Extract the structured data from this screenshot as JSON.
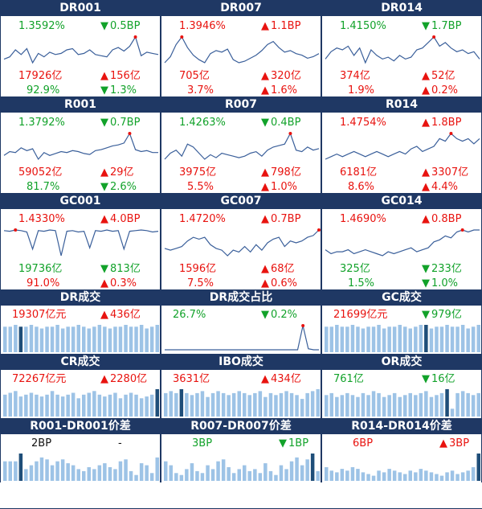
{
  "colors": {
    "header": "#1f3864",
    "up": "#e8130f",
    "down": "#12a22a",
    "line": "#3a5f9a",
    "bar": "#9dc3e6",
    "bar_highlight": "#1f4e79"
  },
  "panels": [
    {
      "title": "DR001",
      "rate": "1.3592%",
      "rate_color": "green",
      "bp_dir": "down",
      "bp": "0.5BP",
      "bp_color": "green",
      "vol": "17926亿",
      "vol_color": "red",
      "vdir": "up",
      "vchg": "156亿",
      "vchg_color": "red",
      "pct": "92.9%",
      "pct_color": "green",
      "pdir": "down",
      "pchg": "1.3%",
      "pchg_color": "green",
      "series": [
        1.22,
        1.24,
        1.3,
        1.26,
        1.31,
        1.19,
        1.27,
        1.24,
        1.28,
        1.26,
        1.27,
        1.3,
        1.31,
        1.26,
        1.27,
        1.3,
        1.26,
        1.25,
        1.24,
        1.3,
        1.32,
        1.29,
        1.33,
        1.41,
        1.25,
        1.28,
        1.27,
        1.26
      ]
    },
    {
      "title": "DR007",
      "rate": "1.3946%",
      "rate_color": "red",
      "bp_dir": "up",
      "bp": "1.1BP",
      "bp_color": "red",
      "vol": "705亿",
      "vol_color": "red",
      "vdir": "up",
      "vchg": "320亿",
      "vchg_color": "red",
      "pct": "3.7%",
      "pct_color": "red",
      "pdir": "up",
      "pchg": "1.6%",
      "pchg_color": "red",
      "series": [
        1.28,
        1.32,
        1.4,
        1.45,
        1.38,
        1.33,
        1.3,
        1.28,
        1.34,
        1.36,
        1.35,
        1.37,
        1.3,
        1.28,
        1.29,
        1.31,
        1.33,
        1.36,
        1.4,
        1.42,
        1.38,
        1.35,
        1.36,
        1.34,
        1.33,
        1.31,
        1.32,
        1.34
      ]
    },
    {
      "title": "DR014",
      "rate": "1.4150%",
      "rate_color": "green",
      "bp_dir": "down",
      "bp": "1.7BP",
      "bp_color": "green",
      "vol": "374亿",
      "vol_color": "red",
      "vdir": "up",
      "vchg": "52亿",
      "vchg_color": "red",
      "pct": "1.9%",
      "pct_color": "red",
      "pdir": "up",
      "pchg": "0.2%",
      "pchg_color": "red",
      "series": [
        1.38,
        1.42,
        1.44,
        1.43,
        1.45,
        1.4,
        1.44,
        1.36,
        1.43,
        1.4,
        1.38,
        1.39,
        1.37,
        1.4,
        1.38,
        1.39,
        1.43,
        1.44,
        1.47,
        1.5,
        1.45,
        1.47,
        1.44,
        1.42,
        1.43,
        1.41,
        1.42,
        1.38
      ]
    },
    {
      "title": "R001",
      "rate": "1.3792%",
      "rate_color": "green",
      "bp_dir": "down",
      "bp": "0.7BP",
      "bp_color": "green",
      "vol": "59052亿",
      "vol_color": "red",
      "vdir": "up",
      "vchg": "29亿",
      "vchg_color": "red",
      "pct": "81.7%",
      "pct_color": "green",
      "pdir": "down",
      "pchg": "2.6%",
      "pchg_color": "green",
      "series": [
        1.22,
        1.26,
        1.25,
        1.3,
        1.27,
        1.29,
        1.18,
        1.25,
        1.22,
        1.24,
        1.26,
        1.25,
        1.27,
        1.26,
        1.24,
        1.23,
        1.27,
        1.28,
        1.3,
        1.32,
        1.33,
        1.35,
        1.45,
        1.28,
        1.26,
        1.27,
        1.25,
        1.25
      ]
    },
    {
      "title": "R007",
      "rate": "1.4263%",
      "rate_color": "green",
      "bp_dir": "down",
      "bp": "0.4BP",
      "bp_color": "green",
      "vol": "3975亿",
      "vol_color": "red",
      "vdir": "up",
      "vchg": "798亿",
      "vchg_color": "red",
      "pct": "5.5%",
      "pct_color": "red",
      "pdir": "up",
      "pchg": "1.0%",
      "pchg_color": "red",
      "series": [
        1.32,
        1.36,
        1.38,
        1.34,
        1.42,
        1.4,
        1.36,
        1.32,
        1.35,
        1.33,
        1.36,
        1.35,
        1.34,
        1.33,
        1.34,
        1.36,
        1.37,
        1.34,
        1.38,
        1.4,
        1.41,
        1.42,
        1.49,
        1.38,
        1.37,
        1.4,
        1.38,
        1.39
      ]
    },
    {
      "title": "R014",
      "rate": "1.4754%",
      "rate_color": "red",
      "bp_dir": "up",
      "bp": "1.8BP",
      "bp_color": "red",
      "vol": "6181亿",
      "vol_color": "red",
      "vdir": "up",
      "vchg": "3307亿",
      "vchg_color": "red",
      "pct": "8.6%",
      "pct_color": "red",
      "pdir": "up",
      "pchg": "4.4%",
      "pchg_color": "red",
      "series": [
        1.4,
        1.41,
        1.42,
        1.41,
        1.42,
        1.43,
        1.42,
        1.41,
        1.42,
        1.43,
        1.42,
        1.41,
        1.42,
        1.43,
        1.42,
        1.44,
        1.45,
        1.43,
        1.44,
        1.45,
        1.48,
        1.47,
        1.5,
        1.48,
        1.47,
        1.48,
        1.46,
        1.48
      ]
    },
    {
      "title": "GC001",
      "rate": "1.4330%",
      "rate_color": "red",
      "bp_dir": "up",
      "bp": "4.0BP",
      "bp_color": "red",
      "vol": "19736亿",
      "vol_color": "green",
      "vdir": "down",
      "vchg": "813亿",
      "vchg_color": "green",
      "pct": "91.0%",
      "pct_color": "red",
      "pdir": "up",
      "pchg": "0.3%",
      "pchg_color": "red",
      "series": [
        1.48,
        1.47,
        1.49,
        1.48,
        1.46,
        1.2,
        1.48,
        1.47,
        1.49,
        1.48,
        1.1,
        1.47,
        1.48,
        1.46,
        1.47,
        1.22,
        1.48,
        1.47,
        1.49,
        1.47,
        1.48,
        1.2,
        1.47,
        1.48,
        1.49,
        1.48,
        1.46,
        1.47
      ]
    },
    {
      "title": "GC007",
      "rate": "1.4720%",
      "rate_color": "red",
      "bp_dir": "up",
      "bp": "0.7BP",
      "bp_color": "red",
      "vol": "1596亿",
      "vol_color": "red",
      "vdir": "up",
      "vchg": "68亿",
      "vchg_color": "red",
      "pct": "7.5%",
      "pct_color": "red",
      "pdir": "up",
      "pchg": "0.6%",
      "pchg_color": "red",
      "series": [
        1.38,
        1.37,
        1.38,
        1.39,
        1.42,
        1.44,
        1.43,
        1.44,
        1.4,
        1.38,
        1.37,
        1.34,
        1.37,
        1.36,
        1.39,
        1.36,
        1.4,
        1.37,
        1.41,
        1.43,
        1.44,
        1.39,
        1.42,
        1.41,
        1.42,
        1.44,
        1.45,
        1.48
      ]
    },
    {
      "title": "GC014",
      "rate": "1.4690%",
      "rate_color": "red",
      "bp_dir": "up",
      "bp": "0.8BP",
      "bp_color": "red",
      "vol": "325亿",
      "vol_color": "green",
      "vdir": "down",
      "vchg": "233亿",
      "vchg_color": "green",
      "pct": "1.5%",
      "pct_color": "green",
      "pdir": "down",
      "pchg": "1.0%",
      "pchg_color": "green",
      "series": [
        1.37,
        1.35,
        1.36,
        1.36,
        1.37,
        1.35,
        1.36,
        1.37,
        1.36,
        1.35,
        1.34,
        1.36,
        1.35,
        1.36,
        1.37,
        1.38,
        1.36,
        1.37,
        1.38,
        1.41,
        1.42,
        1.44,
        1.43,
        1.46,
        1.47,
        1.46,
        1.47,
        1.47
      ]
    }
  ],
  "volume_panels": [
    {
      "title": "DR成交",
      "left": "19307亿元",
      "left_color": "red",
      "dir": "up",
      "chg": "436亿",
      "chg_color": "red",
      "kind": "bar",
      "highlight": 3,
      "series": [
        14,
        14,
        15,
        14,
        14,
        15,
        14,
        13,
        14,
        14,
        15,
        13,
        14,
        14,
        15,
        14,
        13,
        14,
        15,
        14,
        13,
        14,
        14,
        15,
        14,
        14,
        15,
        13,
        14,
        15
      ]
    },
    {
      "title": "DR成交占比",
      "left": "26.7%",
      "left_color": "green",
      "dir": "down",
      "chg": "0.2%",
      "chg_color": "green",
      "kind": "line",
      "series": [
        3,
        3,
        3,
        3,
        3,
        3,
        3,
        3,
        3,
        3,
        3,
        3,
        3,
        3,
        3,
        3,
        3,
        3,
        3,
        3,
        3,
        3,
        3,
        3,
        3,
        3,
        26.7,
        4,
        3,
        3
      ]
    },
    {
      "title": "GC成交",
      "left": "21699亿元",
      "left_color": "red",
      "dir": "down",
      "chg": "979亿",
      "chg_color": "green",
      "kind": "bar",
      "highlight": 19,
      "series": [
        14,
        14,
        15,
        14,
        14,
        15,
        14,
        13,
        14,
        14,
        15,
        13,
        14,
        14,
        15,
        14,
        13,
        14,
        15,
        15,
        13,
        14,
        14,
        15,
        14,
        14,
        15,
        13,
        14,
        15
      ]
    },
    {
      "title": "CR成交",
      "left": "72267亿元",
      "left_color": "red",
      "dir": "up",
      "chg": "2280亿",
      "chg_color": "red",
      "kind": "bar",
      "highlight": 29,
      "series": [
        12,
        13,
        14,
        11,
        12,
        13,
        12,
        11,
        12,
        14,
        12,
        11,
        12,
        13,
        10,
        12,
        13,
        14,
        12,
        11,
        12,
        13,
        10,
        12,
        13,
        12,
        10,
        11,
        12,
        15
      ]
    },
    {
      "title": "IBO成交",
      "left": "3631亿",
      "left_color": "red",
      "dir": "up",
      "chg": "434亿",
      "chg_color": "red",
      "kind": "bar",
      "highlight": 3,
      "series": [
        12,
        13,
        12,
        14,
        12,
        11,
        12,
        13,
        10,
        12,
        13,
        12,
        11,
        12,
        13,
        12,
        11,
        12,
        13,
        10,
        12,
        11,
        12,
        13,
        12,
        11,
        9,
        12,
        13,
        14
      ]
    },
    {
      "title": "OR成交",
      "left": "761亿",
      "left_color": "green",
      "dir": "down",
      "chg": "16亿",
      "chg_color": "green",
      "kind": "bar",
      "highlight": 23,
      "series": [
        11,
        12,
        10,
        11,
        12,
        11,
        10,
        12,
        11,
        13,
        12,
        10,
        11,
        12,
        10,
        11,
        12,
        11,
        12,
        13,
        10,
        11,
        12,
        14,
        4,
        12,
        13,
        12,
        11,
        12
      ]
    }
  ],
  "spread_panels": [
    {
      "title": "R001-DR001价差",
      "left": "2BP",
      "left_color": "black",
      "dir": "",
      "chg": "-",
      "chg_color": "black",
      "highlight": 3,
      "series": [
        10,
        10,
        10,
        14,
        6,
        8,
        10,
        12,
        11,
        8,
        10,
        11,
        9,
        8,
        6,
        5,
        7,
        6,
        8,
        9,
        7,
        6,
        10,
        11,
        5,
        3,
        9,
        8,
        4,
        12
      ]
    },
    {
      "title": "R007-DR007价差",
      "left": "3BP",
      "left_color": "green",
      "dir": "down",
      "chg": "1BP",
      "chg_color": "green",
      "highlight": 28,
      "series": [
        10,
        8,
        4,
        3,
        6,
        9,
        5,
        4,
        8,
        6,
        10,
        11,
        7,
        4,
        6,
        8,
        5,
        6,
        4,
        9,
        5,
        3,
        8,
        6,
        10,
        12,
        8,
        11,
        14,
        5
      ]
    },
    {
      "title": "R014-DR014价差",
      "left": "6BP",
      "left_color": "red",
      "dir": "up",
      "chg": "3BP",
      "chg_color": "red",
      "highlight": 29,
      "series": [
        8,
        6,
        5,
        7,
        6,
        8,
        7,
        5,
        4,
        3,
        6,
        5,
        7,
        6,
        5,
        4,
        6,
        5,
        7,
        6,
        5,
        4,
        3,
        5,
        6,
        4,
        5,
        6,
        8,
        16
      ]
    }
  ]
}
